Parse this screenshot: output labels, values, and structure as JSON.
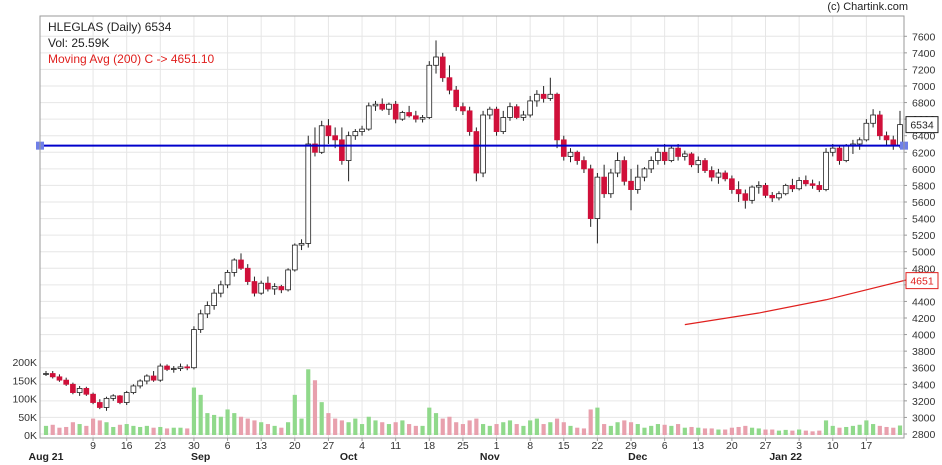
{
  "header": {
    "credit": "(c) Chartink.com",
    "title": "HLEGLAS (Daily) 6534",
    "volume": "Vol: 25.59K",
    "moving_avg": "Moving Avg (200) C -> 4651.10"
  },
  "colors": {
    "up": "#ffffff",
    "down": "#d0103a",
    "vol_up": "#90d98b",
    "vol_down": "#e8a0ad",
    "hline": "#0000cc",
    "ma": "#e0201e",
    "grid": "#e6e6e6",
    "axis": "#9a9a9a"
  },
  "chart_data": {
    "type": "candlestick",
    "price_axis": {
      "min": 2800,
      "max": 7700,
      "ticks": [
        "7600",
        "7400",
        "7200",
        "7000",
        "6800",
        "6600",
        "6400",
        "6200",
        "6000",
        "5800",
        "5600",
        "5400",
        "5200",
        "5000",
        "4800",
        "4600",
        "4400",
        "4200",
        "4000",
        "3800",
        "3600",
        "3400",
        "3200",
        "3000",
        "2800"
      ]
    },
    "volume_axis": {
      "min": 0,
      "max": 200000,
      "ticks": [
        "200K",
        "150K",
        "100K",
        "50K",
        "0K"
      ]
    },
    "x_ticks": [
      {
        "label": "9",
        "i": 7
      },
      {
        "label": "16",
        "i": 12
      },
      {
        "label": "23",
        "i": 17
      },
      {
        "label": "30",
        "i": 22
      },
      {
        "label": "6",
        "i": 27
      },
      {
        "label": "13",
        "i": 32
      },
      {
        "label": "20",
        "i": 37
      },
      {
        "label": "27",
        "i": 42
      },
      {
        "label": "4",
        "i": 47
      },
      {
        "label": "11",
        "i": 52
      },
      {
        "label": "18",
        "i": 57
      },
      {
        "label": "25",
        "i": 62
      },
      {
        "label": "1",
        "i": 67
      },
      {
        "label": "8",
        "i": 72
      },
      {
        "label": "15",
        "i": 77
      },
      {
        "label": "22",
        "i": 82
      },
      {
        "label": "29",
        "i": 87
      },
      {
        "label": "6",
        "i": 92
      },
      {
        "label": "13",
        "i": 97
      },
      {
        "label": "20",
        "i": 102
      },
      {
        "label": "27",
        "i": 107
      },
      {
        "label": "3",
        "i": 112
      },
      {
        "label": "10",
        "i": 117
      },
      {
        "label": "17",
        "i": 122
      }
    ],
    "month_labels": [
      {
        "label": "Aug 21",
        "i": 0
      },
      {
        "label": "Sep",
        "i": 23
      },
      {
        "label": "Oct",
        "i": 45
      },
      {
        "label": "Nov",
        "i": 66
      },
      {
        "label": "Dec",
        "i": 88
      },
      {
        "label": "Jan 22",
        "i": 110
      }
    ],
    "price_labels": {
      "current": "6534",
      "moving_avg": "4651"
    },
    "horizontal_line": 6280,
    "moving_average": [
      [
        95,
        4120
      ],
      [
        106,
        4260
      ],
      [
        116,
        4420
      ],
      [
        128,
        4660
      ]
    ],
    "candles": [
      [
        3520,
        3560,
        3500,
        3530,
        25
      ],
      [
        3530,
        3560,
        3470,
        3490,
        28
      ],
      [
        3490,
        3520,
        3430,
        3450,
        20
      ],
      [
        3450,
        3480,
        3380,
        3400,
        22
      ],
      [
        3400,
        3420,
        3280,
        3300,
        35
      ],
      [
        3300,
        3380,
        3260,
        3350,
        30
      ],
      [
        3350,
        3370,
        3260,
        3280,
        25
      ],
      [
        3280,
        3300,
        3160,
        3180,
        45
      ],
      [
        3180,
        3220,
        3100,
        3120,
        40
      ],
      [
        3120,
        3250,
        3080,
        3230,
        35
      ],
      [
        3230,
        3280,
        3200,
        3260,
        22
      ],
      [
        3260,
        3270,
        3160,
        3180,
        28
      ],
      [
        3180,
        3320,
        3150,
        3300,
        30
      ],
      [
        3300,
        3400,
        3280,
        3380,
        25
      ],
      [
        3380,
        3460,
        3350,
        3440,
        22
      ],
      [
        3440,
        3520,
        3400,
        3500,
        25
      ],
      [
        3500,
        3560,
        3430,
        3450,
        20
      ],
      [
        3450,
        3650,
        3430,
        3620,
        22
      ],
      [
        3620,
        3640,
        3560,
        3580,
        18
      ],
      [
        3580,
        3620,
        3540,
        3590,
        20
      ],
      [
        3590,
        3650,
        3560,
        3610,
        20
      ],
      [
        3610,
        3640,
        3570,
        3600,
        18
      ],
      [
        3600,
        4100,
        3580,
        4060,
        130
      ],
      [
        4060,
        4300,
        4020,
        4250,
        110
      ],
      [
        4250,
        4400,
        4200,
        4350,
        60
      ],
      [
        4350,
        4550,
        4300,
        4500,
        55
      ],
      [
        4500,
        4650,
        4450,
        4600,
        50
      ],
      [
        4600,
        4780,
        4560,
        4750,
        70
      ],
      [
        4750,
        4920,
        4700,
        4900,
        60
      ],
      [
        4900,
        4980,
        4780,
        4800,
        50
      ],
      [
        4800,
        4850,
        4600,
        4640,
        45
      ],
      [
        4640,
        4700,
        4460,
        4500,
        40
      ],
      [
        4500,
        4650,
        4480,
        4620,
        35
      ],
      [
        4620,
        4700,
        4520,
        4550,
        30
      ],
      [
        4550,
        4620,
        4480,
        4580,
        25
      ],
      [
        4580,
        4600,
        4500,
        4540,
        20
      ],
      [
        4540,
        4800,
        4520,
        4780,
        35
      ],
      [
        4780,
        5100,
        4760,
        5080,
        110
      ],
      [
        5080,
        5150,
        5020,
        5100,
        45
      ],
      [
        5100,
        6400,
        5050,
        6300,
        180
      ],
      [
        6300,
        6500,
        6150,
        6200,
        150
      ],
      [
        6200,
        6580,
        6180,
        6520,
        90
      ],
      [
        6520,
        6600,
        6300,
        6400,
        60
      ],
      [
        6400,
        6500,
        6250,
        6350,
        45
      ],
      [
        6350,
        6500,
        6050,
        6100,
        40
      ],
      [
        6100,
        6450,
        5850,
        6400,
        35
      ],
      [
        6400,
        6480,
        6350,
        6450,
        45
      ],
      [
        6450,
        6520,
        6400,
        6480,
        30
      ],
      [
        6480,
        6800,
        6460,
        6760,
        50
      ],
      [
        6760,
        6820,
        6700,
        6780,
        40
      ],
      [
        6780,
        6850,
        6700,
        6720,
        35
      ],
      [
        6720,
        6800,
        6650,
        6780,
        30
      ],
      [
        6780,
        6820,
        6550,
        6600,
        35
      ],
      [
        6600,
        6700,
        6580,
        6680,
        40
      ],
      [
        6680,
        6760,
        6620,
        6640,
        30
      ],
      [
        6640,
        6700,
        6560,
        6600,
        25
      ],
      [
        6600,
        6650,
        6560,
        6620,
        25
      ],
      [
        6620,
        7300,
        6600,
        7250,
        75
      ],
      [
        7250,
        7550,
        7150,
        7350,
        60
      ],
      [
        7350,
        7400,
        7050,
        7100,
        45
      ],
      [
        7100,
        7250,
        6900,
        6950,
        50
      ],
      [
        6950,
        7000,
        6700,
        6750,
        35
      ],
      [
        6750,
        6800,
        6650,
        6700,
        30
      ],
      [
        6700,
        6750,
        6400,
        6450,
        40
      ],
      [
        6450,
        6500,
        5850,
        5950,
        45
      ],
      [
        5950,
        6700,
        5900,
        6650,
        30
      ],
      [
        6650,
        6750,
        6600,
        6720,
        25
      ],
      [
        6720,
        6750,
        6400,
        6450,
        30
      ],
      [
        6450,
        6700,
        6420,
        6620,
        35
      ],
      [
        6620,
        6800,
        6580,
        6750,
        40
      ],
      [
        6750,
        6780,
        6600,
        6620,
        30
      ],
      [
        6620,
        6700,
        6580,
        6650,
        25
      ],
      [
        6650,
        6880,
        6620,
        6820,
        40
      ],
      [
        6820,
        6950,
        6750,
        6900,
        45
      ],
      [
        6900,
        7000,
        6800,
        6850,
        30
      ],
      [
        6850,
        7100,
        6820,
        6900,
        35
      ],
      [
        6900,
        6920,
        6250,
        6350,
        45
      ],
      [
        6350,
        6400,
        6100,
        6150,
        35
      ],
      [
        6150,
        6250,
        6080,
        6200,
        25
      ],
      [
        6200,
        6220,
        6050,
        6100,
        20
      ],
      [
        6100,
        6150,
        5950,
        6000,
        18
      ],
      [
        6000,
        6050,
        5300,
        5400,
        70
      ],
      [
        5400,
        5950,
        5100,
        5900,
        75
      ],
      [
        5900,
        6050,
        5650,
        5700,
        30
      ],
      [
        5700,
        6000,
        5650,
        5950,
        25
      ],
      [
        5950,
        6200,
        5900,
        6100,
        35
      ],
      [
        6100,
        6150,
        5800,
        5850,
        40
      ],
      [
        5850,
        6000,
        5500,
        5750,
        35
      ],
      [
        5750,
        6050,
        5700,
        5900,
        30
      ],
      [
        5900,
        6020,
        5850,
        6000,
        20
      ],
      [
        6000,
        6150,
        5950,
        6100,
        25
      ],
      [
        6100,
        6250,
        6050,
        6200,
        30
      ],
      [
        6200,
        6300,
        6050,
        6100,
        28
      ],
      [
        6100,
        6280,
        6080,
        6250,
        25
      ],
      [
        6250,
        6300,
        6100,
        6150,
        30
      ],
      [
        6150,
        6220,
        6100,
        6180,
        20
      ],
      [
        6180,
        6200,
        6020,
        6050,
        22
      ],
      [
        6050,
        6150,
        5950,
        6100,
        20
      ],
      [
        6100,
        6130,
        5950,
        5980,
        18
      ],
      [
        5980,
        6030,
        5850,
        5900,
        18
      ],
      [
        5900,
        6000,
        5820,
        5950,
        15
      ],
      [
        5950,
        5980,
        5850,
        5880,
        15
      ],
      [
        5880,
        5920,
        5700,
        5750,
        20
      ],
      [
        5750,
        5850,
        5600,
        5700,
        22
      ],
      [
        5700,
        5750,
        5520,
        5620,
        25
      ],
      [
        5620,
        5800,
        5580,
        5780,
        20
      ],
      [
        5780,
        5850,
        5700,
        5800,
        18
      ],
      [
        5800,
        5830,
        5650,
        5680,
        15
      ],
      [
        5680,
        5720,
        5600,
        5650,
        15
      ],
      [
        5650,
        5730,
        5620,
        5700,
        12
      ],
      [
        5700,
        5820,
        5680,
        5800,
        14
      ],
      [
        5800,
        5880,
        5720,
        5760,
        12
      ],
      [
        5760,
        5900,
        5740,
        5860,
        15
      ],
      [
        5860,
        5920,
        5790,
        5820,
        12
      ],
      [
        5820,
        5870,
        5760,
        5800,
        10
      ],
      [
        5800,
        5850,
        5720,
        5750,
        12
      ],
      [
        5750,
        6250,
        5730,
        6200,
        40
      ],
      [
        6200,
        6300,
        6150,
        6250,
        25
      ],
      [
        6250,
        6280,
        6050,
        6100,
        20
      ],
      [
        6100,
        6300,
        6080,
        6280,
        22
      ],
      [
        6280,
        6350,
        6180,
        6300,
        25
      ],
      [
        6300,
        6380,
        6230,
        6350,
        28
      ],
      [
        6350,
        6600,
        6330,
        6550,
        40
      ],
      [
        6550,
        6720,
        6500,
        6650,
        30
      ],
      [
        6650,
        6700,
        6350,
        6400,
        25
      ],
      [
        6400,
        6450,
        6280,
        6350,
        22
      ],
      [
        6350,
        6400,
        6230,
        6280,
        20
      ],
      [
        6280,
        6700,
        6250,
        6534,
        26
      ]
    ]
  }
}
